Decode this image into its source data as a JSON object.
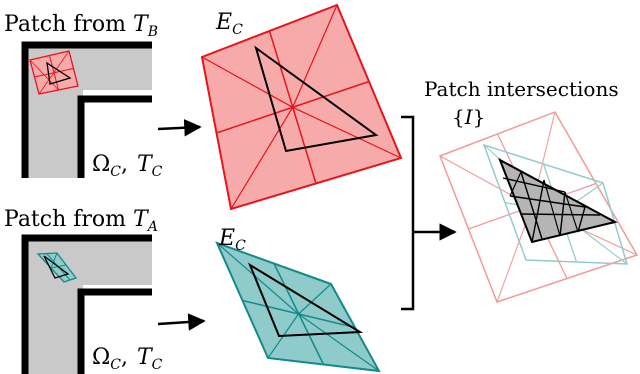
{
  "labels": {
    "patch_b_prefix": "Patch from ",
    "patch_b_sym": "T",
    "patch_b_sub": "B",
    "patch_a_prefix": "Patch from ",
    "patch_a_sym": "T",
    "patch_a_sub": "A",
    "ec_top_sym": "E",
    "ec_top_sub": "C",
    "ec_bottom_sym": "E",
    "ec_bottom_sub": "C",
    "omega_top_sym": "Ω",
    "omega_top_sub": "C",
    "omega_top_sep": ",",
    "tau_top_sym": "T",
    "tau_top_sub": "C",
    "omega_bottom_sym": "Ω",
    "omega_bottom_sub": "C",
    "omega_bottom_sep": ",",
    "tau_bottom_sym": "T",
    "tau_bottom_sub": "C",
    "intersections_title": "Patch intersections",
    "intersections_set_open": "{",
    "intersections_set_sym": "I",
    "intersections_set_close": "}"
  },
  "colors": {
    "patch_b_stroke": "#e8141b",
    "patch_b_fill": "#f7aaaa",
    "patch_a_stroke": "#138a8a",
    "patch_a_fill": "#8fcbcb",
    "intersection_b_stroke": "#f29a9a",
    "intersection_a_stroke": "#93cccc",
    "intersection_fill": "#b5b5b5",
    "domain_fill": "#c9c9c9",
    "boundary": "#000000"
  }
}
